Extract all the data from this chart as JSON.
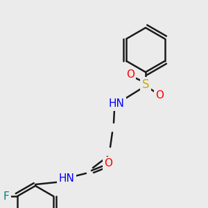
{
  "bg_color": "#ebebeb",
  "bond_color": "#1a1a1a",
  "bond_lw": 1.8,
  "atom_colors": {
    "N": "#0000ff",
    "O": "#ff0000",
    "S": "#ccaa00",
    "F": "#008080",
    "H": "#4a8a8a",
    "C": "#1a1a1a"
  },
  "font_size": 10,
  "font_size_small": 9
}
